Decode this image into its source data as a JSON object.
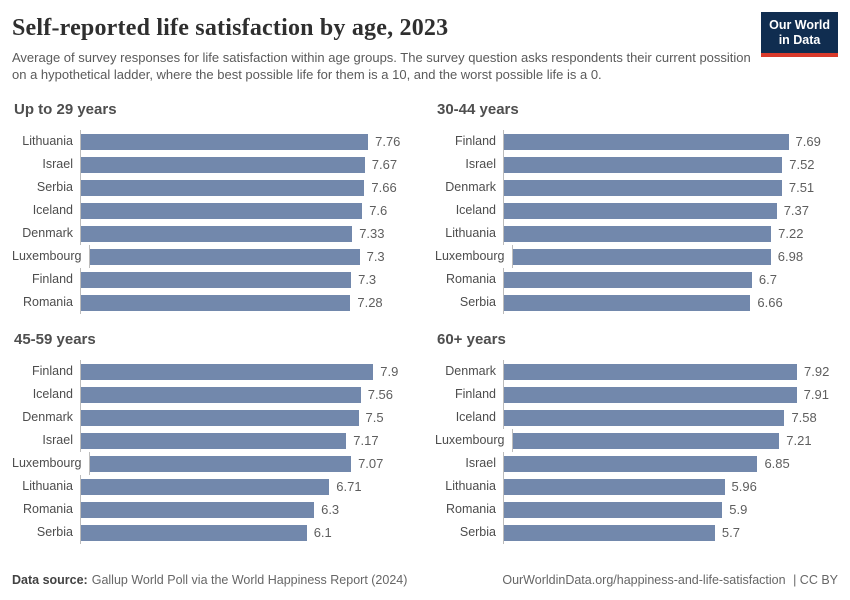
{
  "header": {
    "title": "Self-reported life satisfaction by age, 2023",
    "subtitle": "Average of survey responses for life satisfaction within age groups. The survey question asks respondents their current possition on a hypothetical ladder, where the best possible life for them is a 10, and the worst possible life is a 0.",
    "logo_line1": "Our World",
    "logo_line2": "in Data"
  },
  "footer": {
    "source_label": "Data source:",
    "source_text": "Gallup World Poll via the World Happiness Report (2024)",
    "url": "OurWorldinData.org/happiness-and-life-satisfaction",
    "license": "| CC BY"
  },
  "colors": {
    "bar": "#7288ac",
    "logo_background": "#102d50",
    "logo_accent": "#d93a2b",
    "axis_line": "#bcbcbc"
  },
  "chart_data": [
    {
      "type": "bar",
      "orientation": "horizontal",
      "title": "Up to 29 years",
      "categories": [
        "Lithuania",
        "Israel",
        "Serbia",
        "Iceland",
        "Denmark",
        "Luxembourg",
        "Finland",
        "Romania"
      ],
      "values": [
        7.76,
        7.67,
        7.66,
        7.6,
        7.33,
        7.3,
        7.3,
        7.28
      ],
      "value_labels": [
        "7.76",
        "7.67",
        "7.66",
        "7.6",
        "7.33",
        "7.3",
        "7.3",
        "7.28"
      ],
      "xlim": [
        0,
        8.2
      ],
      "grid": false,
      "legend": false
    },
    {
      "type": "bar",
      "orientation": "horizontal",
      "title": "30-44 years",
      "categories": [
        "Finland",
        "Israel",
        "Denmark",
        "Iceland",
        "Lithuania",
        "Luxembourg",
        "Romania",
        "Serbia"
      ],
      "values": [
        7.69,
        7.52,
        7.51,
        7.37,
        7.22,
        6.98,
        6.7,
        6.66
      ],
      "value_labels": [
        "7.69",
        "7.52",
        "7.51",
        "7.37",
        "7.22",
        "6.98",
        "6.7",
        "6.66"
      ],
      "xlim": [
        0,
        8.2
      ],
      "grid": false,
      "legend": false
    },
    {
      "type": "bar",
      "orientation": "horizontal",
      "title": "45-59 years",
      "categories": [
        "Finland",
        "Iceland",
        "Denmark",
        "Israel",
        "Luxembourg",
        "Lithuania",
        "Romania",
        "Serbia"
      ],
      "values": [
        7.9,
        7.56,
        7.5,
        7.17,
        7.07,
        6.71,
        6.3,
        6.1
      ],
      "value_labels": [
        "7.9",
        "7.56",
        "7.5",
        "7.17",
        "7.07",
        "6.71",
        "6.3",
        "6.1"
      ],
      "xlim": [
        0,
        8.2
      ],
      "grid": false,
      "legend": false
    },
    {
      "type": "bar",
      "orientation": "horizontal",
      "title": "60+ years",
      "categories": [
        "Denmark",
        "Finland",
        "Iceland",
        "Luxembourg",
        "Israel",
        "Lithuania",
        "Romania",
        "Serbia"
      ],
      "values": [
        7.92,
        7.91,
        7.58,
        7.21,
        6.85,
        5.96,
        5.9,
        5.7
      ],
      "value_labels": [
        "7.92",
        "7.91",
        "7.58",
        "7.21",
        "6.85",
        "5.96",
        "5.9",
        "5.7"
      ],
      "xlim": [
        0,
        8.2
      ],
      "grid": false,
      "legend": false
    }
  ]
}
